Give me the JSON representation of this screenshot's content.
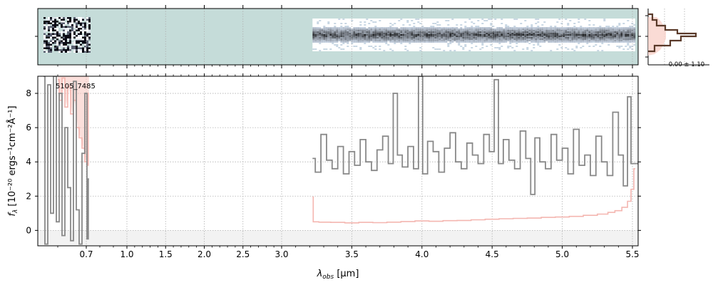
{
  "chart_data": {
    "type": "line",
    "object_label": "5105_7485",
    "xlabel": "λ",
    "xlabel_sub": "obs",
    "xlabel_unit": " [μm]",
    "ylabel": "f",
    "ylabel_sub": "λ",
    "ylabel_unit": " [10⁻²⁰ ergs⁻¹cm⁻²Å⁻¹]",
    "xlim": [
      0.53,
      5.52
    ],
    "ylim": [
      -0.9,
      9.0
    ],
    "x_scale": "piecewise: approximately linear per segment (0.7→1.0 wider than 1.0→3.0 ticks spacing; 3.0→5.5 wider)",
    "x_ticks": [
      {
        "value": 0.7,
        "label": "0.7"
      },
      {
        "value": 1.0,
        "label": "1.0"
      },
      {
        "value": 1.5,
        "label": "1.5"
      },
      {
        "value": 2.0,
        "label": "2.0"
      },
      {
        "value": 2.5,
        "label": "2.5"
      },
      {
        "value": 3.0,
        "label": "3.0"
      },
      {
        "value": 3.5,
        "label": "3.5"
      },
      {
        "value": 4.0,
        "label": "4.0"
      },
      {
        "value": 4.5,
        "label": "4.5"
      },
      {
        "value": 5.0,
        "label": "5.0"
      },
      {
        "value": 5.5,
        "label": "5.5"
      }
    ],
    "y_ticks": [
      {
        "value": 0,
        "label": "0"
      },
      {
        "value": 2,
        "label": "2"
      },
      {
        "value": 4,
        "label": "4"
      },
      {
        "value": 6,
        "label": "6"
      },
      {
        "value": 8,
        "label": "8"
      }
    ],
    "grid": true,
    "histogram_label": "0.00 ± 1.10",
    "colors": {
      "flux": "#888888",
      "error": "#f4b6b0",
      "error_fill": "#f7c4bd",
      "zero_band": "#f2f2f2",
      "image_bg": "#c5dcd9",
      "hist_line": "#5a3a2a",
      "hist_fill": "#f9d2cb",
      "grid": "#b0b0b0"
    },
    "series": [
      {
        "role": "flux",
        "segments": [
          {
            "x": [
              0.55,
              0.56,
              0.57,
              0.58,
              0.59,
              0.6,
              0.61,
              0.62,
              0.63,
              0.64,
              0.65,
              0.66,
              0.67,
              0.68,
              0.69,
              0.7,
              0.71,
              0.72
            ],
            "y": [
              9.0,
              -0.8,
              8.5,
              1.0,
              9.0,
              0.5,
              8.0,
              -0.3,
              6.0,
              2.5,
              -0.6,
              8.7,
              1.2,
              -0.8,
              4.5,
              8.0,
              -0.5,
              3.0
            ]
          },
          {
            "x": [
              3.22,
              3.26,
              3.3,
              3.34,
              3.38,
              3.42,
              3.46,
              3.5,
              3.54,
              3.58,
              3.62,
              3.66,
              3.7,
              3.74,
              3.78,
              3.81,
              3.84,
              3.88,
              3.92,
              3.96,
              3.99,
              4.02,
              4.06,
              4.1,
              4.14,
              4.18,
              4.22,
              4.26,
              4.3,
              4.34,
              4.38,
              4.42,
              4.46,
              4.5,
              4.53,
              4.56,
              4.6,
              4.64,
              4.68,
              4.72,
              4.76,
              4.79,
              4.82,
              4.86,
              4.9,
              4.94,
              4.98,
              5.02,
              5.06,
              5.1,
              5.14,
              5.18,
              5.22,
              5.26,
              5.3,
              5.34,
              5.38,
              5.42,
              5.45,
              5.48,
              5.5,
              5.52
            ],
            "y": [
              4.2,
              3.4,
              5.6,
              4.1,
              3.6,
              4.9,
              3.3,
              4.6,
              3.8,
              5.3,
              4.0,
              3.5,
              4.7,
              5.5,
              3.9,
              8.0,
              4.4,
              3.7,
              4.9,
              3.6,
              9.0,
              3.3,
              5.2,
              4.6,
              3.4,
              4.8,
              5.7,
              4.0,
              3.6,
              5.1,
              4.4,
              3.9,
              5.6,
              4.6,
              8.8,
              3.9,
              5.3,
              4.1,
              3.6,
              5.8,
              4.2,
              2.1,
              5.4,
              4.0,
              3.6,
              5.6,
              4.1,
              4.8,
              3.3,
              5.9,
              3.8,
              4.4,
              3.2,
              5.5,
              4.0,
              3.2,
              6.9,
              4.4,
              2.6,
              7.8,
              3.9,
              3.9
            ]
          }
        ]
      },
      {
        "role": "error",
        "segments": [
          {
            "x": [
              0.6,
              0.61,
              0.62,
              0.63,
              0.64,
              0.65,
              0.66,
              0.67,
              0.68,
              0.69,
              0.7,
              0.71,
              0.72
            ],
            "y": [
              8.8,
              7.6,
              8.9,
              7.2,
              8.4,
              6.8,
              7.6,
              6.0,
              5.4,
              4.8,
              4.0,
              3.8,
              8.0
            ]
          },
          {
            "x": [
              3.22,
              3.23,
              3.3,
              3.4,
              3.5,
              3.6,
              3.7,
              3.8,
              3.9,
              4.0,
              4.1,
              4.2,
              4.3,
              4.4,
              4.5,
              4.6,
              4.7,
              4.8,
              4.9,
              5.0,
              5.1,
              5.2,
              5.3,
              5.35,
              5.4,
              5.45,
              5.48,
              5.5,
              5.51
            ],
            "y": [
              1.95,
              0.5,
              0.48,
              0.47,
              0.44,
              0.47,
              0.45,
              0.48,
              0.52,
              0.55,
              0.53,
              0.57,
              0.58,
              0.62,
              0.65,
              0.68,
              0.7,
              0.72,
              0.76,
              0.78,
              0.82,
              0.88,
              0.95,
              1.05,
              1.15,
              1.35,
              1.7,
              2.4,
              3.6
            ]
          }
        ]
      }
    ]
  }
}
